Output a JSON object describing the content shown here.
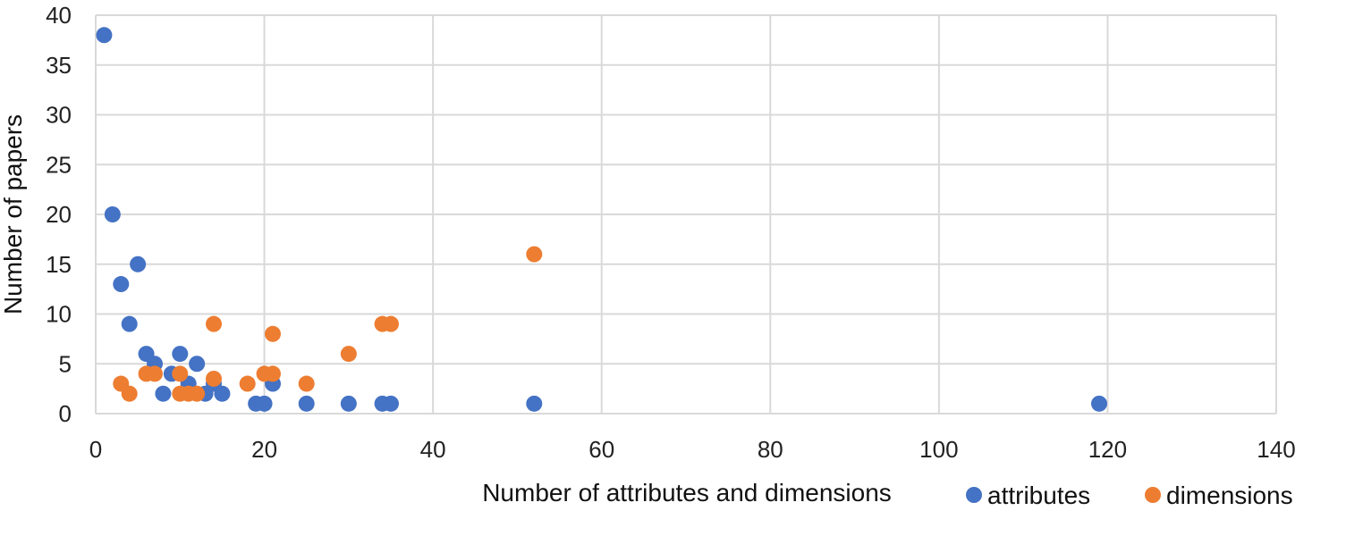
{
  "chart_data": {
    "type": "scatter",
    "title": "",
    "xlabel": "Number of attributes and dimensions",
    "ylabel": "Number of papers",
    "xlim": [
      0,
      140
    ],
    "ylim": [
      0,
      40
    ],
    "x_ticks": [
      0,
      20,
      40,
      60,
      80,
      100,
      120,
      140
    ],
    "y_ticks": [
      0,
      5,
      10,
      15,
      20,
      25,
      30,
      35,
      40
    ],
    "grid": true,
    "legend_position": "bottom-right",
    "series": [
      {
        "name": "attributes",
        "color": "#4472C4",
        "points": [
          [
            1,
            38
          ],
          [
            2,
            20
          ],
          [
            3,
            13
          ],
          [
            4,
            9
          ],
          [
            5,
            15
          ],
          [
            6,
            6
          ],
          [
            7,
            5
          ],
          [
            8,
            2
          ],
          [
            9,
            4
          ],
          [
            10,
            6
          ],
          [
            11,
            3
          ],
          [
            12,
            5
          ],
          [
            13,
            2
          ],
          [
            14,
            3
          ],
          [
            15,
            2
          ],
          [
            19,
            1
          ],
          [
            20,
            1
          ],
          [
            21,
            3
          ],
          [
            25,
            1
          ],
          [
            30,
            1
          ],
          [
            34,
            1
          ],
          [
            35,
            1
          ],
          [
            52,
            1
          ],
          [
            119,
            1
          ]
        ]
      },
      {
        "name": "dimensions",
        "color": "#ED7D31",
        "points": [
          [
            3,
            3
          ],
          [
            4,
            2
          ],
          [
            6,
            4
          ],
          [
            7,
            4
          ],
          [
            10,
            4
          ],
          [
            10,
            2
          ],
          [
            11,
            2
          ],
          [
            12,
            2
          ],
          [
            14,
            9
          ],
          [
            14,
            3.5
          ],
          [
            18,
            3
          ],
          [
            20,
            4
          ],
          [
            21,
            4
          ],
          [
            21,
            8
          ],
          [
            25,
            3
          ],
          [
            30,
            6
          ],
          [
            34,
            9
          ],
          [
            35,
            9
          ],
          [
            52,
            16
          ]
        ]
      }
    ]
  }
}
